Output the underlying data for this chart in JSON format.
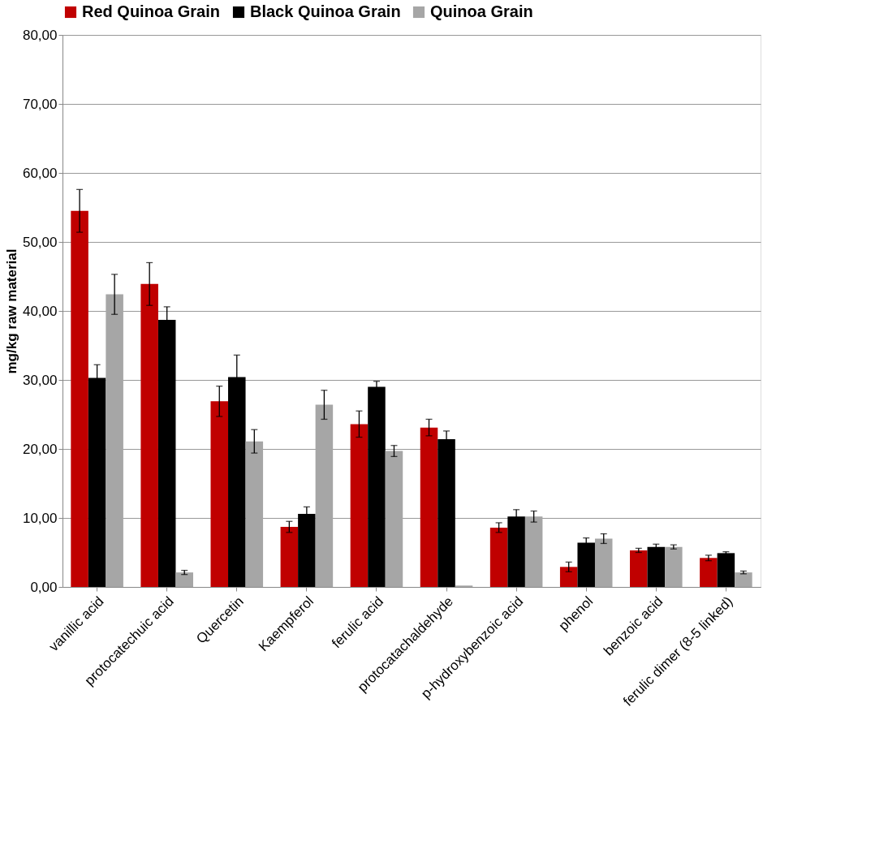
{
  "chart_data": {
    "type": "bar",
    "ylabel": "mg/kg raw material",
    "categories": [
      "vanillic acid",
      "protocatechuic acid",
      "Quercetin",
      "Kaempferol",
      "ferulic acid",
      "protocatachaldehyde",
      "p-hydroxybenzoic acid",
      "phenol",
      "benzoic acid",
      "ferulic dimer (8-5 linked)"
    ],
    "series": [
      {
        "name": "Red Quinoa Grain",
        "color": "#c00000",
        "values": [
          54.5,
          43.9,
          26.9,
          8.7,
          23.6,
          23.1,
          8.6,
          2.9,
          5.3,
          4.2
        ],
        "errors": [
          3.1,
          3.1,
          2.2,
          0.8,
          1.9,
          1.2,
          0.7,
          0.7,
          0.3,
          0.4
        ]
      },
      {
        "name": "Black Quinoa Grain",
        "color": "#000000",
        "values": [
          30.3,
          38.7,
          30.4,
          10.6,
          29.0,
          21.4,
          10.2,
          6.4,
          5.8,
          4.9
        ],
        "errors": [
          1.9,
          1.9,
          3.2,
          1.0,
          0.8,
          1.2,
          1.0,
          0.7,
          0.4,
          0.2
        ]
      },
      {
        "name": "Quinoa Grain",
        "color": "#a6a6a6",
        "values": [
          42.4,
          2.1,
          21.1,
          26.4,
          19.7,
          0.2,
          10.2,
          7.0,
          5.8,
          2.1
        ],
        "errors": [
          2.9,
          0.3,
          1.7,
          2.1,
          0.8,
          null,
          0.8,
          0.7,
          0.3,
          0.2
        ]
      }
    ],
    "ylim": [
      0,
      80
    ],
    "yticks": [
      {
        "value": 0,
        "label": "0,00"
      },
      {
        "value": 10,
        "label": "10,00"
      },
      {
        "value": 20,
        "label": "20,00"
      },
      {
        "value": 30,
        "label": "30,00"
      },
      {
        "value": 40,
        "label": "40,00"
      },
      {
        "value": 50,
        "label": "50,00"
      },
      {
        "value": 60,
        "label": "60,00"
      },
      {
        "value": 70,
        "label": "70,00"
      },
      {
        "value": 80,
        "label": "80,00"
      }
    ],
    "grid": "y",
    "legend": "top"
  }
}
